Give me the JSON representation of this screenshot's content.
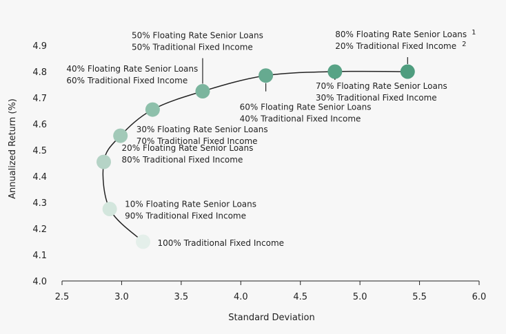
{
  "chart_data": {
    "type": "scatter",
    "title": "",
    "xlabel": "Standard Deviation",
    "ylabel": "Annualized Return (%)",
    "xlim": [
      2.5,
      6.0
    ],
    "ylim": [
      4.0,
      4.9
    ],
    "xticks": [
      "2.5",
      "3.0",
      "3.5",
      "4.0",
      "4.5",
      "5.0",
      "5.5",
      "6.0"
    ],
    "yticks": [
      "4.0",
      "4.1",
      "4.2",
      "4.3",
      "4.4",
      "4.5",
      "4.6",
      "4.7",
      "4.8",
      "4.9"
    ],
    "grid": false,
    "legend": "none",
    "colors": [
      "#e4efea",
      "#d3e6dd",
      "#b5d3c6",
      "#a2c9b8",
      "#8ec0ab",
      "#7bb59e",
      "#66aa90",
      "#58a386",
      "#4f9d7f"
    ],
    "points": [
      {
        "x": 3.18,
        "y": 4.15,
        "label1": "100% Traditional Fixed Income",
        "label2": ""
      },
      {
        "x": 2.9,
        "y": 4.275,
        "label1": "10% Floating Rate Senior Loans",
        "label2": "90% Traditional Fixed Income"
      },
      {
        "x": 2.85,
        "y": 4.455,
        "label1": "20% Floating Rate Senior Loans",
        "label2": "80% Traditional Fixed Income"
      },
      {
        "x": 2.99,
        "y": 4.555,
        "label1": "30% Floating Rate Senior Loans",
        "label2": "70% Traditional Fixed Income"
      },
      {
        "x": 3.26,
        "y": 4.655,
        "label1": "40% Floating Rate Senior Loans",
        "label2": "60% Traditional Fixed Income"
      },
      {
        "x": 3.68,
        "y": 4.725,
        "label1": "50% Floating Rate Senior Loans",
        "label2": "50% Traditional Fixed Income"
      },
      {
        "x": 4.21,
        "y": 4.785,
        "label1": "60% Floating Rate Senior Loans",
        "label2": "40% Traditional Fixed Income"
      },
      {
        "x": 4.79,
        "y": 4.8,
        "label1": "70% Floating Rate Senior Loans",
        "label2": "30% Traditional Fixed Income"
      },
      {
        "x": 5.4,
        "y": 4.8,
        "label1": "80% Floating Rate Senior Loans",
        "label2": "20% Traditional Fixed Income",
        "sup1": "1",
        "sup2": "2"
      }
    ]
  }
}
